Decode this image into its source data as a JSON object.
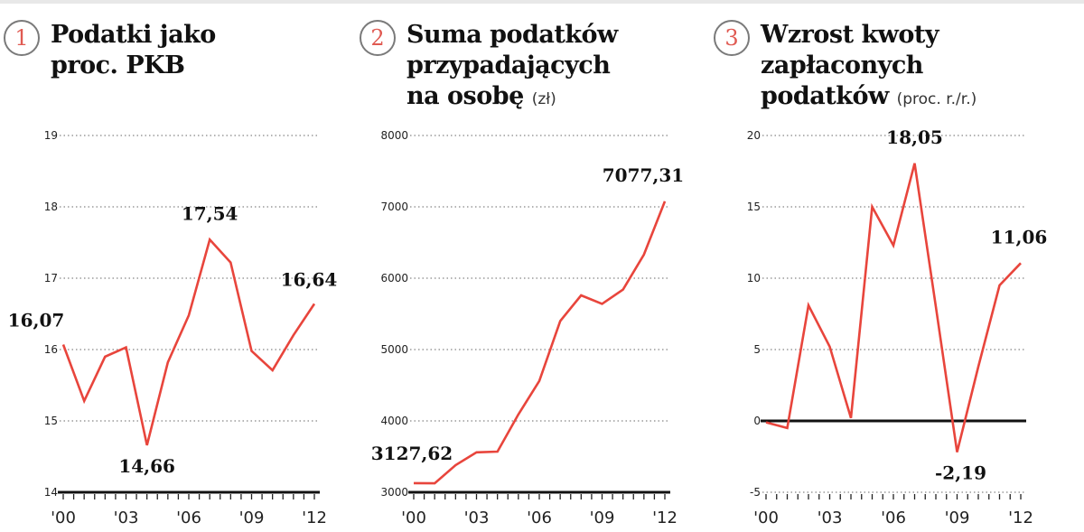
{
  "chart_data": [
    {
      "type": "line",
      "number": "1",
      "title": "Podatki jako proc. PKB",
      "title_lines": [
        "Podatki jako",
        "proc. PKB"
      ],
      "unit": "",
      "x": [
        2000,
        2001,
        2002,
        2003,
        2004,
        2005,
        2006,
        2007,
        2008,
        2009,
        2010,
        2011,
        2012
      ],
      "values": [
        16.07,
        15.28,
        15.9,
        16.03,
        14.66,
        15.82,
        16.48,
        17.54,
        17.22,
        15.98,
        15.71,
        16.2,
        16.64
      ],
      "ylim": [
        14,
        19
      ],
      "yticks": [
        "14",
        "15",
        "16",
        "17",
        "18",
        "19"
      ],
      "xtick_labels": [
        "'00",
        "'03",
        "'06",
        "'09",
        "'12"
      ],
      "xtick_years": [
        2000,
        2003,
        2006,
        2009,
        2012
      ],
      "annotations": [
        {
          "x": 2000,
          "y": 16.07,
          "text": "16,07"
        },
        {
          "x": 2004,
          "y": 14.66,
          "text": "14,66"
        },
        {
          "x": 2007,
          "y": 17.54,
          "text": "17,54"
        },
        {
          "x": 2012,
          "y": 16.64,
          "text": "16,64"
        }
      ],
      "grid": true,
      "baseline": 14,
      "line_color": "#e8453c"
    },
    {
      "type": "line",
      "number": "2",
      "title": "Suma podatków przypadających na osobę",
      "title_lines": [
        "Suma podatków",
        "przypadających",
        "na osobę"
      ],
      "unit": "(zł)",
      "x": [
        2000,
        2001,
        2002,
        2003,
        2004,
        2005,
        2006,
        2007,
        2008,
        2009,
        2010,
        2011,
        2012
      ],
      "values": [
        3127.62,
        3125,
        3380,
        3560,
        3570,
        4090,
        4560,
        5400,
        5760,
        5640,
        5840,
        6330,
        7077.31
      ],
      "ylim": [
        3000,
        8000
      ],
      "yticks": [
        "3000",
        "4000",
        "5000",
        "6000",
        "7000",
        "8000"
      ],
      "xtick_labels": [
        "'00",
        "'03",
        "'06",
        "'09",
        "'12"
      ],
      "xtick_years": [
        2000,
        2003,
        2006,
        2009,
        2012
      ],
      "annotations": [
        {
          "x": 2000,
          "y": 3127.62,
          "text": "3127,62"
        },
        {
          "x": 2012,
          "y": 7077.31,
          "text": "7077,31"
        }
      ],
      "grid": true,
      "baseline": 3000,
      "line_color": "#e8453c"
    },
    {
      "type": "line",
      "number": "3",
      "title": "Wzrost kwoty zapłaconych podatków",
      "title_lines": [
        "Wzrost kwoty",
        "zapłaconych",
        "podatków"
      ],
      "unit": "(proc. r./r.)",
      "x": [
        2000,
        2001,
        2002,
        2003,
        2004,
        2005,
        2006,
        2007,
        2008,
        2009,
        2010,
        2011,
        2012
      ],
      "values": [
        -0.1,
        -0.5,
        8.1,
        5.2,
        0.2,
        15.0,
        12.3,
        18.05,
        8.0,
        -2.19,
        3.8,
        9.5,
        11.06
      ],
      "ylim": [
        -5,
        20
      ],
      "yticks": [
        "-5",
        "0",
        "5",
        "10",
        "15",
        "20"
      ],
      "xtick_labels": [
        "'00",
        "'03",
        "'06",
        "'09",
        "'12"
      ],
      "xtick_years": [
        2000,
        2003,
        2006,
        2009,
        2012
      ],
      "annotations": [
        {
          "x": 2007,
          "y": 18.05,
          "text": "18,05"
        },
        {
          "x": 2009,
          "y": -2.19,
          "text": "-2,19"
        },
        {
          "x": 2012,
          "y": 11.06,
          "text": "11,06"
        }
      ],
      "grid": true,
      "baseline": 0,
      "line_color": "#e8453c"
    }
  ]
}
